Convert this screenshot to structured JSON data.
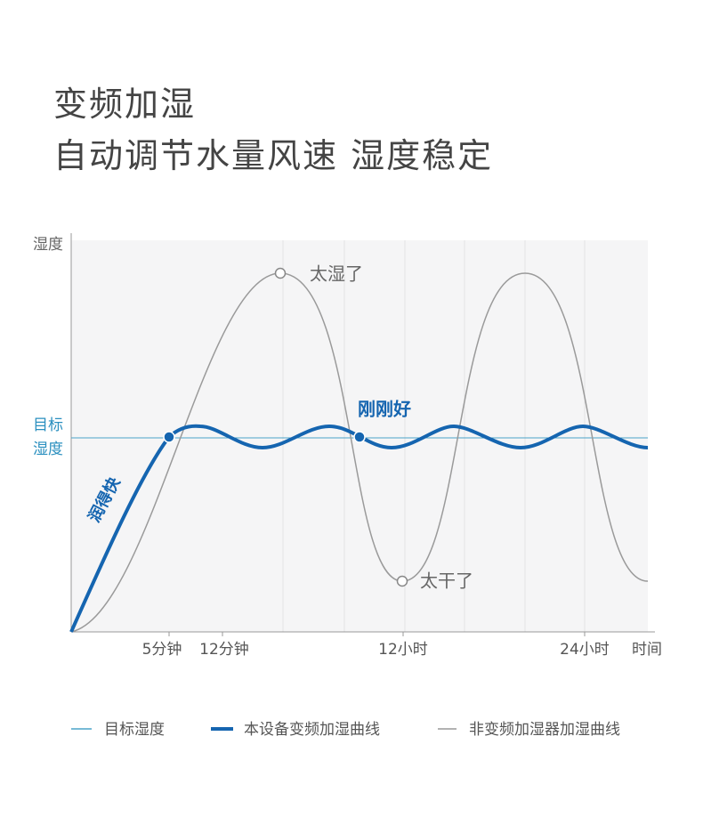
{
  "header": {
    "title": "变频加湿",
    "subtitle": "自动调节水量风速 湿度稳定"
  },
  "chart": {
    "y_axis_label": "湿度",
    "target_label": [
      "目标",
      "湿度"
    ],
    "x_labels": [
      "5分钟",
      "12分钟",
      "12小时",
      "24小时",
      "时间"
    ],
    "annotations": {
      "too_wet": "太湿了",
      "too_dry": "太干了",
      "just_right": "刚刚好",
      "fast": "润得快"
    }
  },
  "legend": [
    "目标湿度",
    "本设备变频加湿曲线",
    "非变频加湿器加湿曲线"
  ]
}
